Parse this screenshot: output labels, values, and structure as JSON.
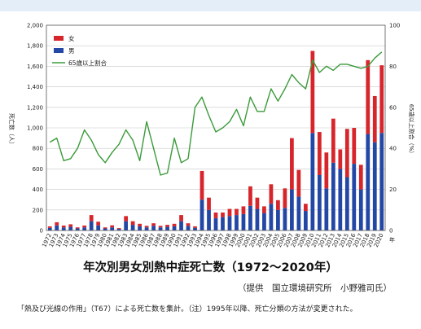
{
  "chart_data": {
    "type": "bar",
    "title": "年次別男女別熱中症死亡数（1972〜2020年）",
    "credit": "（提供　国立環境研究所　小野雅司氏）",
    "note": "「熱及び光線の作用」（T67）による死亡数を集計。（注）1995年以降、死亡分類の方法が変更された。",
    "ylabel": "死亡数（人）",
    "y2label": "65歳以上割合（%）",
    "xunit": "年",
    "ylim": [
      0,
      2000
    ],
    "y2lim": [
      0,
      100
    ],
    "yticks": [
      "0",
      "200",
      "400",
      "600",
      "800",
      "1,000",
      "1,200",
      "1,400",
      "1,600",
      "1,800",
      "2,000"
    ],
    "y2ticks": [
      "0",
      "20",
      "40",
      "60",
      "80",
      "100"
    ],
    "grid": true,
    "legend_position": "top-left",
    "colors": {
      "female": "#d7262b",
      "male": "#2347a4",
      "ratio": "#3a9a3a"
    },
    "x": [
      1972,
      1973,
      1974,
      1975,
      1976,
      1977,
      1978,
      1979,
      1980,
      1981,
      1982,
      1983,
      1984,
      1985,
      1986,
      1987,
      1988,
      1989,
      1990,
      1991,
      1992,
      1993,
      1994,
      1995,
      1996,
      1997,
      1998,
      1999,
      2000,
      2001,
      2002,
      2003,
      2004,
      2005,
      2006,
      2007,
      2008,
      2009,
      2010,
      2011,
      2012,
      2013,
      2014,
      2015,
      2016,
      2017,
      2018,
      2019,
      2020
    ],
    "series": [
      {
        "name": "女",
        "axis": "left",
        "kind": "bar",
        "values": [
          15,
          30,
          18,
          25,
          10,
          18,
          60,
          35,
          10,
          20,
          8,
          50,
          35,
          25,
          15,
          25,
          15,
          20,
          25,
          60,
          25,
          15,
          280,
          120,
          55,
          45,
          70,
          60,
          75,
          190,
          110,
          65,
          190,
          95,
          190,
          500,
          260,
          70,
          800,
          420,
          350,
          430,
          190,
          470,
          350,
          240,
          720,
          450,
          660
        ]
      },
      {
        "name": "男",
        "axis": "left",
        "kind": "bar",
        "values": [
          25,
          50,
          30,
          35,
          20,
          30,
          90,
          50,
          20,
          30,
          15,
          90,
          55,
          40,
          30,
          45,
          30,
          35,
          40,
          90,
          45,
          25,
          300,
          200,
          120,
          130,
          140,
          150,
          160,
          240,
          210,
          170,
          260,
          200,
          220,
          400,
          330,
          190,
          950,
          540,
          410,
          660,
          600,
          520,
          650,
          400,
          940,
          860,
          950
        ]
      },
      {
        "name": "65歳以上割合",
        "axis": "right",
        "kind": "line",
        "values": [
          43,
          45,
          34,
          35,
          40,
          49,
          44,
          37,
          33,
          38,
          42,
          49,
          44,
          34,
          53,
          40,
          27,
          28,
          45,
          33,
          35,
          60,
          65,
          56,
          48,
          50,
          53,
          59,
          51,
          65,
          58,
          58,
          69,
          63,
          69,
          76,
          72,
          69,
          83,
          77,
          80,
          78,
          81,
          81,
          80,
          79,
          80,
          84,
          87
        ]
      }
    ]
  }
}
